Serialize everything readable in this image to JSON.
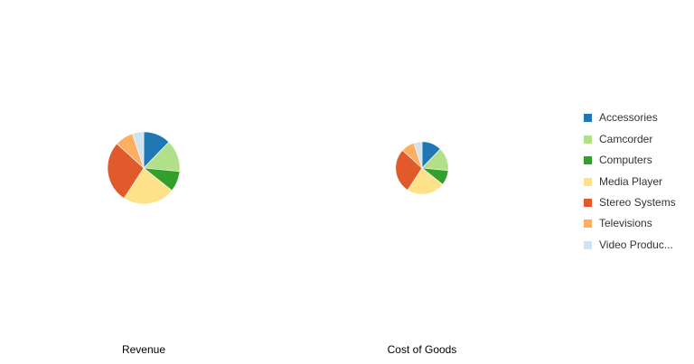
{
  "chart_data": {
    "type": "pie",
    "categories": [
      "Accessories",
      "Camcorder",
      "Computers",
      "Media Player",
      "Stereo Systems",
      "Televisions",
      "Video Production"
    ],
    "colors": [
      "#1f77b4",
      "#b2df8a",
      "#33a02c",
      "#fde28a",
      "#e05a2b",
      "#fdae61",
      "#cfe3f1"
    ],
    "series": [
      {
        "name": "Revenue",
        "values": [
          12,
          14,
          9,
          23,
          27,
          8,
          5
        ],
        "relative_size": 1.0
      },
      {
        "name": "Cost of Goods",
        "values": [
          12,
          14,
          9,
          23,
          27,
          8,
          5
        ],
        "relative_size": 0.73
      }
    ],
    "legend_position": "right",
    "title": "",
    "xlabel": "",
    "ylabel": ""
  },
  "legend": {
    "items": [
      {
        "label": "Accessories",
        "color": "#1f77b4"
      },
      {
        "label": "Camcorder",
        "color": "#b2df8a"
      },
      {
        "label": "Computers",
        "color": "#33a02c"
      },
      {
        "label": "Media Player",
        "color": "#fde28a"
      },
      {
        "label": "Stereo Systems",
        "color": "#e05a2b"
      },
      {
        "label": "Televisions",
        "color": "#fdae61"
      },
      {
        "label": "Video Produc...",
        "color": "#cfe3f1"
      }
    ]
  },
  "labels": {
    "revenue": "Revenue",
    "cost_of_goods": "Cost of Goods"
  }
}
